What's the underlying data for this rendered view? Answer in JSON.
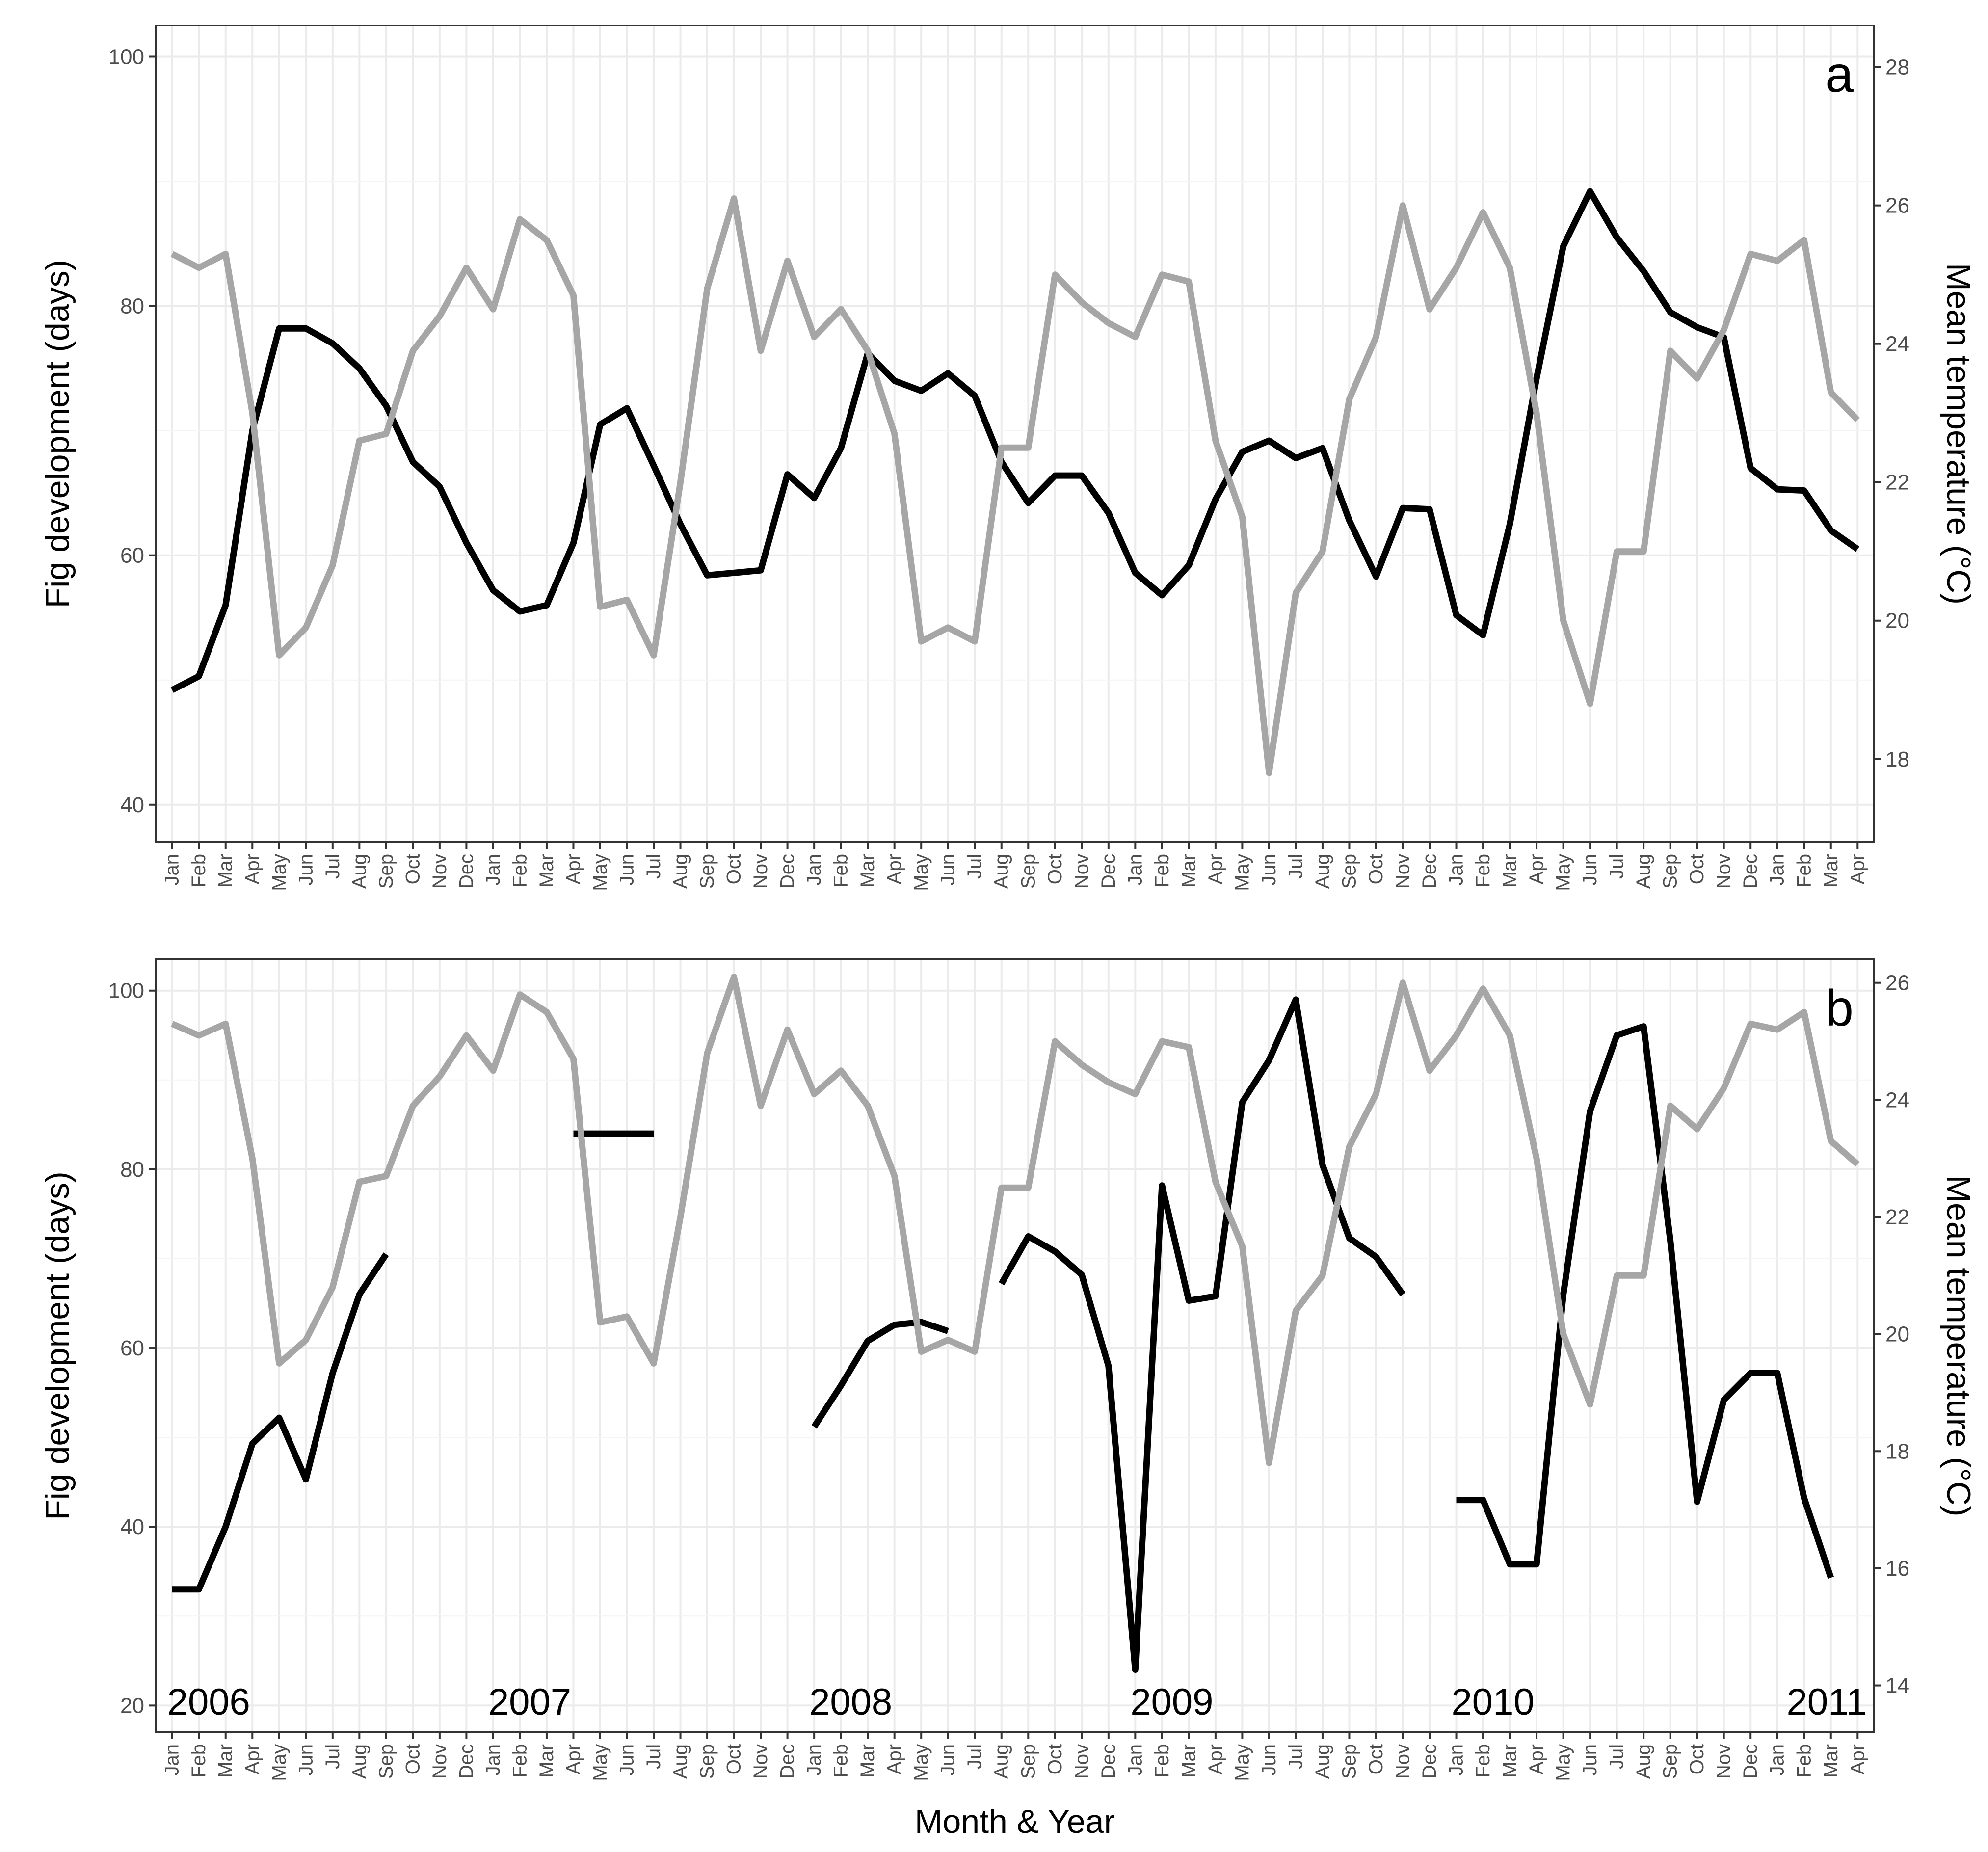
{
  "months": [
    "Jan",
    "Feb",
    "Mar",
    "Apr",
    "May",
    "Jun",
    "Jul",
    "Aug",
    "Sep",
    "Oct",
    "Nov",
    "Dec",
    "Jan",
    "Feb",
    "Mar",
    "Apr",
    "May",
    "Jun",
    "Jul",
    "Aug",
    "Sep",
    "Oct",
    "Nov",
    "Dec",
    "Jan",
    "Feb",
    "Mar",
    "Apr",
    "May",
    "Jun",
    "Jul",
    "Aug",
    "Sep",
    "Oct",
    "Nov",
    "Dec",
    "Jan",
    "Feb",
    "Mar",
    "Apr",
    "May",
    "Jun",
    "Jul",
    "Aug",
    "Sep",
    "Oct",
    "Nov",
    "Dec",
    "Jan",
    "Feb",
    "Mar",
    "Apr",
    "May",
    "Jun",
    "Jul",
    "Aug",
    "Sep",
    "Oct",
    "Nov",
    "Dec",
    "Jan",
    "Feb",
    "Mar",
    "Apr"
  ],
  "xlabel": "Month & Year",
  "colors": {
    "development": "#000000",
    "temperature": "#a6a6a6"
  },
  "chart_data": [
    {
      "type": "line",
      "panel_label": "a",
      "ylabel": "Fig development (days)",
      "y2label": "Mean temperature (°C)",
      "ylim": [
        37,
        102.5
      ],
      "yticks": [
        40,
        60,
        80,
        100
      ],
      "y2lim": [
        16.8,
        28.6
      ],
      "y2ticks": [
        18,
        20,
        22,
        24,
        26,
        28
      ],
      "year_labels": [],
      "grid": true,
      "series": [
        {
          "key": "development",
          "axis": "left",
          "values": [
            49.2,
            50.3,
            56,
            70,
            78.2,
            78.2,
            77,
            75,
            72,
            67.5,
            65.5,
            61,
            57.2,
            55.5,
            56,
            61,
            70.5,
            71.8,
            67.2,
            62.5,
            58.4,
            58.6,
            58.8,
            66.5,
            64.6,
            68.6,
            76.2,
            74,
            73.2,
            74.6,
            72.8,
            67.5,
            64.2,
            66.4,
            66.4,
            63.4,
            58.6,
            56.8,
            59.2,
            64.5,
            68.3,
            69.2,
            67.8,
            68.6,
            62.8,
            58.3,
            63.8,
            63.7,
            55.2,
            53.6,
            62.5,
            74.2,
            84.8,
            89.2,
            85.5,
            82.8,
            79.5,
            78.3,
            77.5,
            67,
            65.3,
            65.2,
            62,
            60.5
          ]
        },
        {
          "key": "temperature",
          "axis": "right",
          "values": [
            25.3,
            25.1,
            25.3,
            23,
            19.5,
            19.9,
            20.8,
            22.6,
            22.7,
            23.9,
            24.4,
            25.1,
            24.5,
            25.8,
            25.5,
            24.7,
            20.2,
            20.3,
            19.5,
            22,
            24.8,
            26.1,
            23.9,
            25.2,
            24.1,
            24.5,
            23.9,
            22.7,
            19.7,
            19.9,
            19.7,
            22.5,
            22.5,
            25,
            24.6,
            24.3,
            24.1,
            25,
            24.9,
            22.6,
            21.5,
            17.8,
            20.4,
            21,
            23.2,
            24.1,
            26,
            24.5,
            25.1,
            25.9,
            25.1,
            23,
            20,
            18.8,
            21,
            21,
            23.9,
            23.5,
            24.2,
            25.3,
            25.2,
            25.5,
            23.3,
            22.9
          ]
        }
      ]
    },
    {
      "type": "line",
      "panel_label": "b",
      "ylabel": "Fig development (days)",
      "y2label": "Mean temperature (°C)",
      "ylim": [
        17,
        103.5
      ],
      "yticks": [
        20,
        40,
        60,
        80,
        100
      ],
      "y2lim": [
        13.2,
        26.4
      ],
      "y2ticks": [
        14,
        16,
        18,
        20,
        22,
        24,
        26
      ],
      "year_labels": [
        {
          "text": "2006",
          "index": 0
        },
        {
          "text": "2007",
          "index": 12
        },
        {
          "text": "2008",
          "index": 24
        },
        {
          "text": "2009",
          "index": 36
        },
        {
          "text": "2010",
          "index": 48
        },
        {
          "text": "2011",
          "index": 60
        }
      ],
      "grid": true,
      "series": [
        {
          "key": "development",
          "axis": "left",
          "values": [
            33,
            33,
            40,
            49.3,
            52.2,
            45.3,
            57.2,
            66,
            70.5,
            null,
            null,
            null,
            null,
            null,
            null,
            84,
            84,
            84,
            84,
            null,
            null,
            null,
            null,
            null,
            51.2,
            55.8,
            60.8,
            62.6,
            62.9,
            61.9,
            null,
            67.2,
            72.5,
            70.8,
            68.2,
            58,
            24,
            78.2,
            65.3,
            65.8,
            87.5,
            92.2,
            99,
            80.5,
            72.3,
            70.2,
            66,
            null,
            43,
            43,
            35.8,
            35.8,
            66,
            86.5,
            95,
            96,
            72,
            42.8,
            54.2,
            57.2,
            57.2,
            43.2,
            34.3,
            null
          ]
        },
        {
          "key": "temperature",
          "axis": "right",
          "values": [
            25.3,
            25.1,
            25.3,
            23,
            19.5,
            19.9,
            20.8,
            22.6,
            22.7,
            23.9,
            24.4,
            25.1,
            24.5,
            25.8,
            25.5,
            24.7,
            20.2,
            20.3,
            19.5,
            22,
            24.8,
            26.1,
            23.9,
            25.2,
            24.1,
            24.5,
            23.9,
            22.7,
            19.7,
            19.9,
            19.7,
            22.5,
            22.5,
            25,
            24.6,
            24.3,
            24.1,
            25,
            24.9,
            22.6,
            21.5,
            17.8,
            20.4,
            21,
            23.2,
            24.1,
            26,
            24.5,
            25.1,
            25.9,
            25.1,
            23,
            20,
            18.8,
            21,
            21,
            23.9,
            23.5,
            24.2,
            25.3,
            25.2,
            25.5,
            23.3,
            22.9
          ]
        }
      ]
    }
  ]
}
